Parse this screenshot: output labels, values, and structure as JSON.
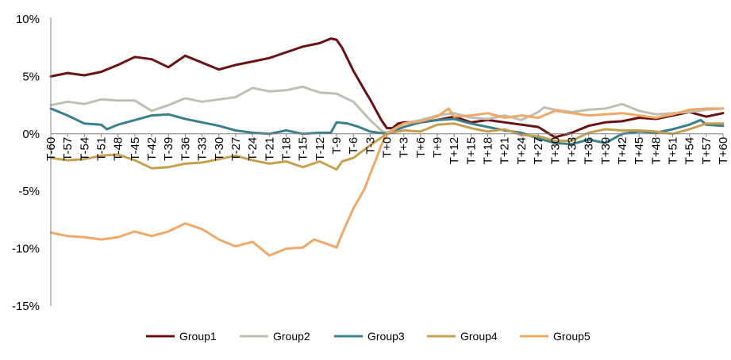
{
  "chart_data": {
    "type": "line",
    "title": "",
    "xlabel": "",
    "ylabel": "",
    "ylim": [
      -15,
      10
    ],
    "ytick_values": [
      10,
      5,
      0,
      -5,
      -10,
      -15
    ],
    "ytick_labels": [
      "10%",
      "5%",
      "0%",
      "-5%",
      "-10%",
      "-15%"
    ],
    "x_range": [
      -60,
      60
    ],
    "xtick_labels": [
      "T-60",
      "T-57",
      "T-54",
      "T-51",
      "T-48",
      "T-45",
      "T-42",
      "T-39",
      "T-36",
      "T-33",
      "T-30",
      "T-27",
      "T-24",
      "T-21",
      "T-18",
      "T-15",
      "T-12",
      "T-9",
      "T-6",
      "T-3",
      "T+0",
      "T+3",
      "T+6",
      "T+9",
      "T+12",
      "T+15",
      "T+18",
      "T+21",
      "T+24",
      "T+27",
      "T+30",
      "T+33",
      "T+36",
      "T+39",
      "T+42",
      "T+45",
      "T+48",
      "T+51",
      "T+54",
      "T+57",
      "T+60"
    ],
    "grid": false,
    "legend_position": "bottom",
    "series": [
      {
        "name": "Group1",
        "color": "#6b1010",
        "points": [
          [
            -60,
            5.0
          ],
          [
            -57,
            5.3
          ],
          [
            -54,
            5.1
          ],
          [
            -51,
            5.4
          ],
          [
            -48,
            6.0
          ],
          [
            -45,
            6.7
          ],
          [
            -42,
            6.5
          ],
          [
            -39,
            5.8
          ],
          [
            -36,
            6.8
          ],
          [
            -33,
            6.2
          ],
          [
            -30,
            5.6
          ],
          [
            -27,
            6.0
          ],
          [
            -24,
            6.3
          ],
          [
            -21,
            6.6
          ],
          [
            -18,
            7.1
          ],
          [
            -15,
            7.6
          ],
          [
            -12,
            7.9
          ],
          [
            -10,
            8.3
          ],
          [
            -9,
            8.2
          ],
          [
            -8,
            7.5
          ],
          [
            -6,
            5.5
          ],
          [
            -4,
            3.8
          ],
          [
            -3,
            3.0
          ],
          [
            -1,
            1.2
          ],
          [
            0,
            0.5
          ],
          [
            1,
            0.5
          ],
          [
            2,
            0.9
          ],
          [
            3,
            1.0
          ],
          [
            6,
            1.0
          ],
          [
            9,
            1.2
          ],
          [
            12,
            1.5
          ],
          [
            15,
            1.0
          ],
          [
            18,
            1.2
          ],
          [
            21,
            1.0
          ],
          [
            24,
            0.8
          ],
          [
            27,
            0.6
          ],
          [
            30,
            -0.3
          ],
          [
            33,
            0.1
          ],
          [
            36,
            0.7
          ],
          [
            39,
            1.0
          ],
          [
            42,
            1.1
          ],
          [
            45,
            1.4
          ],
          [
            48,
            1.3
          ],
          [
            51,
            1.6
          ],
          [
            54,
            1.9
          ],
          [
            57,
            1.5
          ],
          [
            60,
            1.8
          ]
        ]
      },
      {
        "name": "Group2",
        "color": "#c0bfb0",
        "points": [
          [
            -60,
            2.5
          ],
          [
            -57,
            2.8
          ],
          [
            -54,
            2.6
          ],
          [
            -51,
            3.0
          ],
          [
            -48,
            2.9
          ],
          [
            -45,
            2.9
          ],
          [
            -42,
            2.0
          ],
          [
            -39,
            2.5
          ],
          [
            -36,
            3.1
          ],
          [
            -33,
            2.8
          ],
          [
            -30,
            3.0
          ],
          [
            -27,
            3.2
          ],
          [
            -24,
            4.0
          ],
          [
            -21,
            3.7
          ],
          [
            -18,
            3.8
          ],
          [
            -15,
            4.1
          ],
          [
            -12,
            3.6
          ],
          [
            -9,
            3.5
          ],
          [
            -6,
            2.8
          ],
          [
            -3,
            1.2
          ],
          [
            -1,
            0.3
          ],
          [
            0,
            0.1
          ],
          [
            3,
            0.9
          ],
          [
            6,
            1.2
          ],
          [
            9,
            1.6
          ],
          [
            12,
            1.8
          ],
          [
            15,
            1.4
          ],
          [
            18,
            1.3
          ],
          [
            21,
            1.6
          ],
          [
            24,
            1.2
          ],
          [
            27,
            1.9
          ],
          [
            28,
            2.3
          ],
          [
            30,
            2.1
          ],
          [
            33,
            1.9
          ],
          [
            36,
            2.1
          ],
          [
            39,
            2.2
          ],
          [
            42,
            2.6
          ],
          [
            45,
            2.0
          ],
          [
            48,
            1.7
          ],
          [
            51,
            1.8
          ],
          [
            54,
            1.9
          ],
          [
            57,
            2.1
          ],
          [
            60,
            2.2
          ]
        ]
      },
      {
        "name": "Group3",
        "color": "#3a7f8c",
        "points": [
          [
            -60,
            2.2
          ],
          [
            -57,
            1.6
          ],
          [
            -54,
            0.9
          ],
          [
            -51,
            0.8
          ],
          [
            -50,
            0.4
          ],
          [
            -48,
            0.8
          ],
          [
            -45,
            1.2
          ],
          [
            -42,
            1.6
          ],
          [
            -39,
            1.7
          ],
          [
            -36,
            1.3
          ],
          [
            -33,
            1.0
          ],
          [
            -30,
            0.7
          ],
          [
            -27,
            0.3
          ],
          [
            -24,
            0.1
          ],
          [
            -21,
            0.0
          ],
          [
            -18,
            0.3
          ],
          [
            -15,
            0.0
          ],
          [
            -12,
            0.1
          ],
          [
            -10,
            0.1
          ],
          [
            -9,
            1.0
          ],
          [
            -7,
            0.9
          ],
          [
            -5,
            0.6
          ],
          [
            -3,
            0.2
          ],
          [
            0,
            0.0
          ],
          [
            3,
            0.6
          ],
          [
            6,
            1.0
          ],
          [
            9,
            1.2
          ],
          [
            12,
            1.3
          ],
          [
            15,
            0.9
          ],
          [
            18,
            0.6
          ],
          [
            21,
            0.3
          ],
          [
            24,
            0.1
          ],
          [
            27,
            -0.4
          ],
          [
            30,
            -0.8
          ],
          [
            33,
            -0.9
          ],
          [
            36,
            -0.5
          ],
          [
            39,
            -0.8
          ],
          [
            42,
            0.0
          ],
          [
            45,
            0.2
          ],
          [
            48,
            0.1
          ],
          [
            51,
            0.4
          ],
          [
            54,
            0.8
          ],
          [
            56,
            1.2
          ],
          [
            57,
            0.8
          ],
          [
            60,
            0.7
          ]
        ]
      },
      {
        "name": "Group4",
        "color": "#c6a050",
        "points": [
          [
            -60,
            -2.1
          ],
          [
            -57,
            -2.3
          ],
          [
            -54,
            -2.2
          ],
          [
            -51,
            -1.9
          ],
          [
            -48,
            -1.8
          ],
          [
            -45,
            -2.3
          ],
          [
            -42,
            -3.0
          ],
          [
            -39,
            -2.9
          ],
          [
            -36,
            -2.6
          ],
          [
            -33,
            -2.5
          ],
          [
            -30,
            -2.2
          ],
          [
            -27,
            -1.9
          ],
          [
            -24,
            -2.3
          ],
          [
            -21,
            -2.6
          ],
          [
            -18,
            -2.4
          ],
          [
            -15,
            -2.9
          ],
          [
            -12,
            -2.4
          ],
          [
            -9,
            -3.1
          ],
          [
            -8,
            -2.4
          ],
          [
            -6,
            -2.1
          ],
          [
            -3,
            -1.0
          ],
          [
            0,
            0.0
          ],
          [
            3,
            0.3
          ],
          [
            6,
            0.2
          ],
          [
            9,
            0.8
          ],
          [
            12,
            0.9
          ],
          [
            15,
            0.5
          ],
          [
            18,
            0.2
          ],
          [
            21,
            0.4
          ],
          [
            24,
            -0.1
          ],
          [
            27,
            -0.2
          ],
          [
            30,
            -0.6
          ],
          [
            33,
            -0.6
          ],
          [
            36,
            0.1
          ],
          [
            39,
            0.4
          ],
          [
            42,
            0.3
          ],
          [
            45,
            0.3
          ],
          [
            48,
            0.2
          ],
          [
            51,
            0.0
          ],
          [
            54,
            0.4
          ],
          [
            57,
            0.9
          ],
          [
            60,
            0.9
          ]
        ]
      },
      {
        "name": "Group5",
        "color": "#f0a868",
        "points": [
          [
            -60,
            -8.6
          ],
          [
            -57,
            -8.9
          ],
          [
            -54,
            -9.0
          ],
          [
            -51,
            -9.2
          ],
          [
            -48,
            -9.0
          ],
          [
            -45,
            -8.5
          ],
          [
            -42,
            -8.9
          ],
          [
            -39,
            -8.5
          ],
          [
            -36,
            -7.8
          ],
          [
            -33,
            -8.3
          ],
          [
            -30,
            -9.2
          ],
          [
            -27,
            -9.8
          ],
          [
            -24,
            -9.4
          ],
          [
            -21,
            -10.6
          ],
          [
            -18,
            -10.0
          ],
          [
            -15,
            -9.9
          ],
          [
            -13,
            -9.2
          ],
          [
            -10,
            -9.7
          ],
          [
            -9,
            -9.9
          ],
          [
            -8,
            -8.7
          ],
          [
            -6,
            -6.5
          ],
          [
            -4,
            -4.8
          ],
          [
            -3,
            -3.5
          ],
          [
            -2,
            -2.3
          ],
          [
            -1,
            -1.0
          ],
          [
            0,
            0.0
          ],
          [
            3,
            0.9
          ],
          [
            6,
            1.1
          ],
          [
            9,
            1.5
          ],
          [
            11,
            2.2
          ],
          [
            12,
            1.5
          ],
          [
            15,
            1.6
          ],
          [
            18,
            1.8
          ],
          [
            21,
            1.4
          ],
          [
            24,
            1.6
          ],
          [
            27,
            1.4
          ],
          [
            30,
            2.0
          ],
          [
            33,
            1.8
          ],
          [
            36,
            1.6
          ],
          [
            39,
            1.7
          ],
          [
            42,
            1.8
          ],
          [
            45,
            1.6
          ],
          [
            48,
            1.4
          ],
          [
            51,
            1.7
          ],
          [
            54,
            2.1
          ],
          [
            57,
            2.2
          ],
          [
            60,
            2.2
          ]
        ]
      }
    ]
  }
}
